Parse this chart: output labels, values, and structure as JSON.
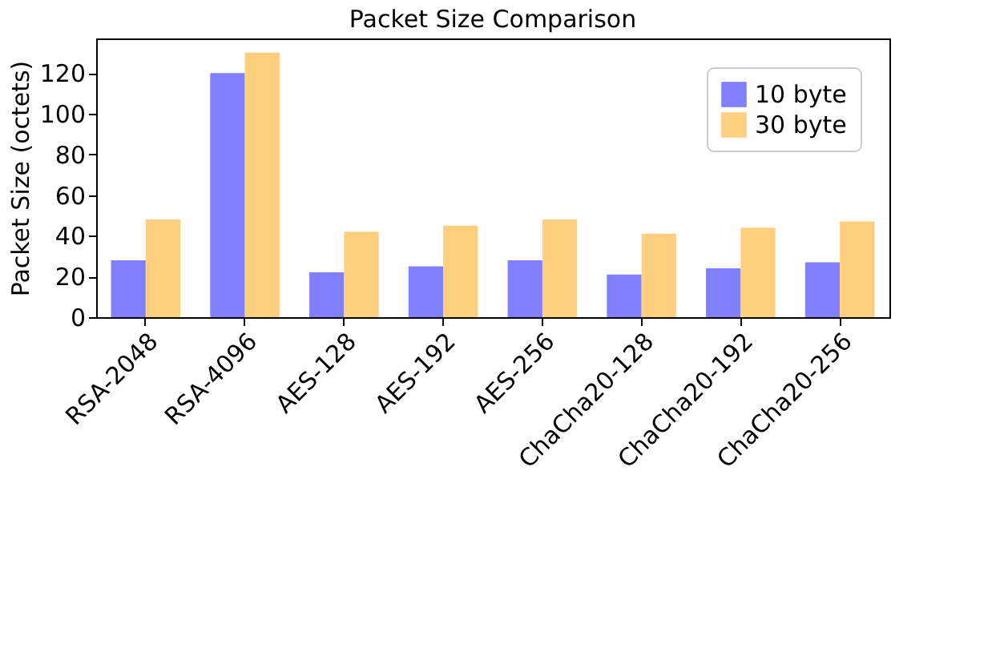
{
  "chart_data": {
    "type": "bar",
    "title": "Packet Size Comparison",
    "ylabel": "Packet Size (octets)",
    "categories": [
      "RSA-2048",
      "RSA-4096",
      "AES-128",
      "AES-192",
      "AES-256",
      "ChaCha20-128",
      "ChaCha20-192",
      "ChaCha20-256"
    ],
    "series": [
      {
        "name": "10 byte",
        "color": "#8080ff",
        "values": [
          28,
          120,
          22,
          25,
          28,
          21,
          24,
          27
        ]
      },
      {
        "name": "30 byte",
        "color": "#ffcf80",
        "values": [
          48,
          130,
          42,
          45,
          48,
          41,
          44,
          47
        ]
      }
    ],
    "ylim": [
      0,
      137
    ],
    "yticks": [
      0,
      20,
      40,
      60,
      80,
      100,
      120
    ],
    "grid": false,
    "legend": "top right"
  }
}
